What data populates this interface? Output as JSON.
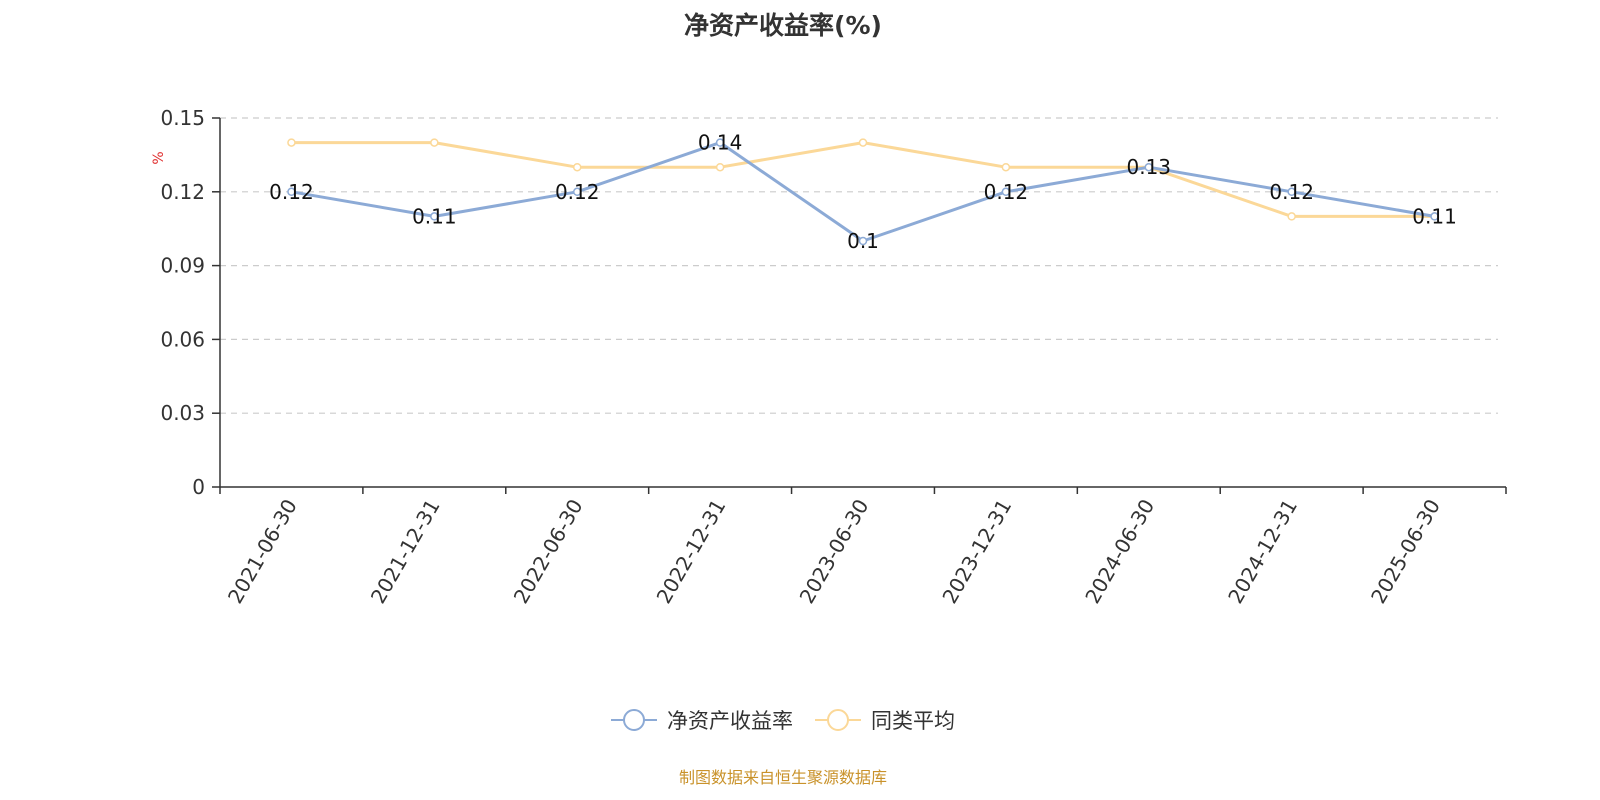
{
  "chart_data": {
    "type": "line",
    "title": "净资产收益率(%)",
    "ylabel": "%",
    "categories": [
      "2021-06-30",
      "2021-12-31",
      "2022-06-30",
      "2022-12-31",
      "2023-06-30",
      "2023-12-31",
      "2024-06-30",
      "2024-12-31",
      "2025-06-30"
    ],
    "ylim": [
      0,
      0.15
    ],
    "yticks": [
      "0",
      "0.03",
      "0.06",
      "0.09",
      "0.12",
      "0.15"
    ],
    "grid": true,
    "legend_position": "bottom",
    "series": [
      {
        "name": "净资产收益率",
        "values": [
          0.12,
          0.11,
          0.12,
          0.14,
          0.1,
          0.12,
          0.13,
          0.12,
          0.11
        ],
        "labels": [
          "0.12",
          "0.11",
          "0.12",
          "0.14",
          "0.1",
          "0.12",
          "0.13",
          "0.12",
          "0.11"
        ],
        "color": "#8caad6"
      },
      {
        "name": "同类平均",
        "values": [
          0.14,
          0.14,
          0.13,
          0.13,
          0.14,
          0.13,
          0.13,
          0.11,
          0.11
        ],
        "color": "#fbd898"
      }
    ]
  },
  "colors": {
    "axis": "#333333",
    "grid": "#cccccc",
    "unit_label": "#e03030",
    "source_note": "#c9922a"
  },
  "footer": {
    "source": "制图数据来自恒生聚源数据库"
  }
}
